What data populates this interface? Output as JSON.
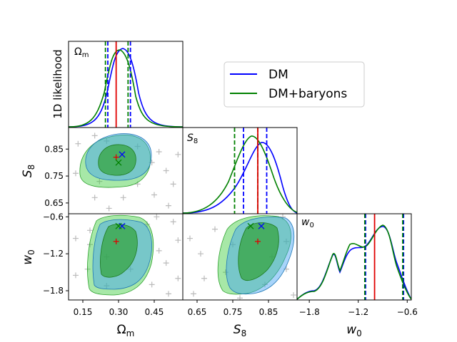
{
  "chart_data": {
    "type": "corner-plot",
    "parameters": [
      "Ωm",
      "S8",
      "w0"
    ],
    "axis_labels": {
      "om": {
        "base": "Ω",
        "sub": "m"
      },
      "s8": {
        "base": "S",
        "sub": "8"
      },
      "w0": {
        "base": "w",
        "sub": "0"
      }
    },
    "ylabel_1d": "1D likelihood",
    "ranges": {
      "om": [
        0.09,
        0.57
      ],
      "s8": [
        0.61,
        0.93
      ],
      "w0": [
        -1.95,
        -0.55
      ]
    },
    "ticks": {
      "om": [
        {
          "v": 0.15,
          "label": "0.15"
        },
        {
          "v": 0.3,
          "label": "0.30"
        },
        {
          "v": 0.45,
          "label": "0.45"
        }
      ],
      "s8": [
        {
          "v": 0.65,
          "label": "0.65"
        },
        {
          "v": 0.75,
          "label": "0.75"
        },
        {
          "v": 0.85,
          "label": "0.85"
        }
      ],
      "w0": [
        {
          "v": -1.8,
          "label": "−1.8"
        },
        {
          "v": -1.2,
          "label": "−1.2"
        },
        {
          "v": -0.6,
          "label": "−0.6"
        }
      ]
    },
    "truth": {
      "om": 0.29,
      "s8": 0.82,
      "w0": -1.0
    },
    "series": [
      {
        "name": "DM",
        "color": "#0000ff",
        "fill": "#3f9ff5",
        "best_fit": {
          "om": 0.315,
          "s8": 0.83,
          "w0": -0.75
        },
        "interval_om": [
          0.255,
          0.35
        ],
        "interval_s8": [
          0.78,
          0.845
        ],
        "interval_w0": [
          -1.11,
          -0.645
        ]
      },
      {
        "name": "DM+baryons",
        "color": "#008000",
        "fill": "#3ccc3c",
        "best_fit": {
          "om": 0.3,
          "s8": 0.8,
          "w0": -0.75
        },
        "interval_om": [
          0.245,
          0.34
        ],
        "interval_s8": [
          0.755,
          0.82
        ],
        "interval_w0": [
          -1.12,
          -0.655
        ]
      }
    ],
    "grid_points_om_s8": [
      [
        0.2,
        0.9
      ],
      [
        0.25,
        0.88
      ],
      [
        0.13,
        0.87
      ],
      [
        0.38,
        0.86
      ],
      [
        0.47,
        0.84
      ],
      [
        0.55,
        0.83
      ],
      [
        0.12,
        0.76
      ],
      [
        0.44,
        0.8
      ],
      [
        0.5,
        0.77
      ],
      [
        0.22,
        0.73
      ],
      [
        0.38,
        0.72
      ],
      [
        0.53,
        0.72
      ],
      [
        0.45,
        0.68
      ],
      [
        0.32,
        0.67
      ],
      [
        0.2,
        0.67
      ],
      [
        0.51,
        0.64
      ],
      [
        0.26,
        0.63
      ]
    ],
    "grid_points_om_w0": [
      [
        0.46,
        -0.6
      ],
      [
        0.53,
        -0.68
      ],
      [
        0.42,
        -0.72
      ],
      [
        0.18,
        -0.82
      ],
      [
        0.12,
        -0.95
      ],
      [
        0.55,
        -0.98
      ],
      [
        0.18,
        -1.05
      ],
      [
        0.47,
        -1.15
      ],
      [
        0.25,
        -1.25
      ],
      [
        0.5,
        -1.35
      ],
      [
        0.17,
        -1.45
      ],
      [
        0.35,
        -1.45
      ],
      [
        0.12,
        -1.55
      ],
      [
        0.55,
        -1.6
      ],
      [
        0.44,
        -1.7
      ],
      [
        0.25,
        -1.72
      ],
      [
        0.51,
        -1.85
      ]
    ],
    "grid_points_s8_w0": [
      [
        0.89,
        -0.6
      ],
      [
        0.7,
        -0.8
      ],
      [
        0.63,
        -0.95
      ],
      [
        0.9,
        -1.0
      ],
      [
        0.75,
        -1.05
      ],
      [
        0.66,
        -1.2
      ],
      [
        0.86,
        -1.25
      ],
      [
        0.9,
        -1.45
      ],
      [
        0.73,
        -1.5
      ],
      [
        0.67,
        -1.6
      ],
      [
        0.84,
        -1.7
      ],
      [
        0.64,
        -1.85
      ],
      [
        0.92,
        -1.87
      ],
      [
        0.77,
        -1.92
      ]
    ],
    "legend_location": "upper-right"
  }
}
